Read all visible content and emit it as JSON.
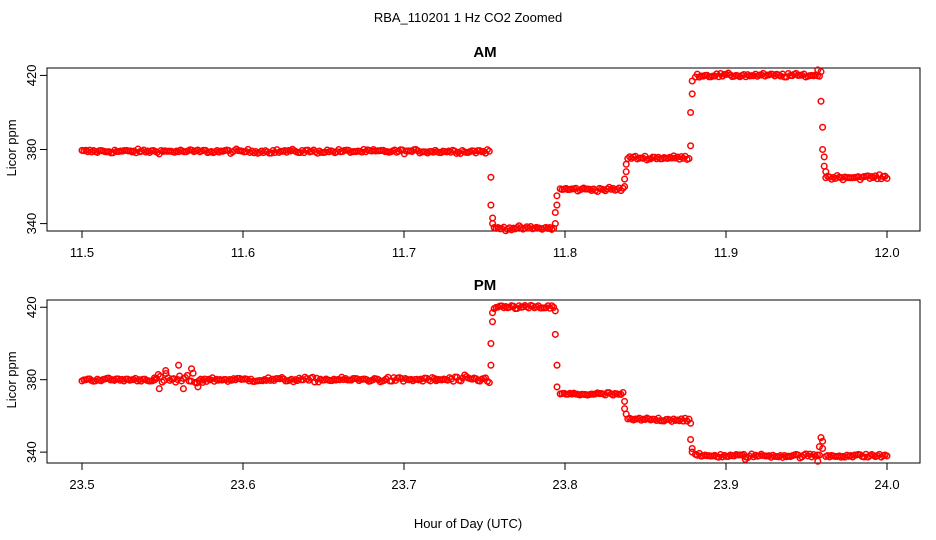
{
  "figure": {
    "title": "RBA_110201  1 Hz CO2 Zoomed",
    "xlabel": "Hour of Day (UTC)"
  },
  "chart_data": [
    {
      "type": "scatter",
      "title": "AM",
      "xlabel": "Hour of Day (UTC)",
      "ylabel": "Licor ppm",
      "xlim": [
        11.5,
        12.0
      ],
      "ylim": [
        336,
        424
      ],
      "xticks": [
        "11.5",
        "11.6",
        "11.7",
        "11.8",
        "11.9",
        "12.0"
      ],
      "xtick_values": [
        11.5,
        11.6,
        11.7,
        11.8,
        11.9,
        12.0
      ],
      "yticks": [
        "340",
        "380",
        "420"
      ],
      "ytick_values": [
        340,
        380,
        420
      ],
      "grid": false,
      "marker_color": "#ff0000",
      "segments": [
        {
          "x_start": 11.5,
          "x_end": 11.753,
          "y": 379,
          "noise": 1.0
        },
        {
          "x_start": 11.756,
          "x_end": 11.793,
          "y": 337.5,
          "noise": 1.0
        },
        {
          "x_start": 11.797,
          "x_end": 11.836,
          "y": 358.5,
          "noise": 1.0
        },
        {
          "x_start": 11.839,
          "x_end": 11.877,
          "y": 375.5,
          "noise": 1.0
        },
        {
          "x_start": 11.881,
          "x_end": 11.958,
          "y": 420,
          "noise": 1.0
        },
        {
          "x_start": 11.962,
          "x_end": 12.0,
          "y": 365,
          "noise": 1.0
        }
      ],
      "transition_points": [
        {
          "x": 11.754,
          "y": 365
        },
        {
          "x": 11.754,
          "y": 350
        },
        {
          "x": 11.755,
          "y": 343
        },
        {
          "x": 11.755,
          "y": 340
        },
        {
          "x": 11.794,
          "y": 340
        },
        {
          "x": 11.794,
          "y": 346
        },
        {
          "x": 11.795,
          "y": 350
        },
        {
          "x": 11.795,
          "y": 355
        },
        {
          "x": 11.837,
          "y": 360
        },
        {
          "x": 11.837,
          "y": 364
        },
        {
          "x": 11.838,
          "y": 368
        },
        {
          "x": 11.838,
          "y": 372
        },
        {
          "x": 11.878,
          "y": 382
        },
        {
          "x": 11.878,
          "y": 400
        },
        {
          "x": 11.879,
          "y": 410
        },
        {
          "x": 11.879,
          "y": 417
        },
        {
          "x": 11.957,
          "y": 423
        },
        {
          "x": 11.959,
          "y": 422
        },
        {
          "x": 11.959,
          "y": 406
        },
        {
          "x": 11.96,
          "y": 392
        },
        {
          "x": 11.96,
          "y": 380
        },
        {
          "x": 11.961,
          "y": 376
        },
        {
          "x": 11.961,
          "y": 371
        },
        {
          "x": 11.962,
          "y": 368
        }
      ]
    },
    {
      "type": "scatter",
      "title": "PM",
      "xlabel": "Hour of Day (UTC)",
      "ylabel": "Licor ppm",
      "xlim": [
        23.5,
        24.0
      ],
      "ylim": [
        334,
        424
      ],
      "xticks": [
        "23.5",
        "23.6",
        "23.7",
        "23.8",
        "23.9",
        "24.0"
      ],
      "xtick_values": [
        23.5,
        23.6,
        23.7,
        23.8,
        23.9,
        24.0
      ],
      "yticks": [
        "340",
        "380",
        "420"
      ],
      "ytick_values": [
        340,
        380,
        420
      ],
      "grid": false,
      "marker_color": "#ff0000",
      "segments": [
        {
          "x_start": 23.5,
          "x_end": 23.545,
          "y": 380,
          "noise": 1.0
        },
        {
          "x_start": 23.545,
          "x_end": 23.575,
          "y": 380,
          "noise": 3.0
        },
        {
          "x_start": 23.575,
          "x_end": 23.72,
          "y": 380,
          "noise": 1.2
        },
        {
          "x_start": 23.72,
          "x_end": 23.753,
          "y": 380,
          "noise": 2.0
        },
        {
          "x_start": 23.756,
          "x_end": 23.793,
          "y": 420,
          "noise": 1.0
        },
        {
          "x_start": 23.797,
          "x_end": 23.836,
          "y": 372,
          "noise": 1.0
        },
        {
          "x_start": 23.839,
          "x_end": 23.877,
          "y": 358,
          "noise": 1.0
        },
        {
          "x_start": 23.881,
          "x_end": 23.958,
          "y": 338,
          "noise": 1.0
        },
        {
          "x_start": 23.962,
          "x_end": 24.0,
          "y": 338,
          "noise": 1.0
        }
      ],
      "transition_points": [
        {
          "x": 23.548,
          "y": 375
        },
        {
          "x": 23.552,
          "y": 385
        },
        {
          "x": 23.56,
          "y": 388
        },
        {
          "x": 23.563,
          "y": 375
        },
        {
          "x": 23.568,
          "y": 386
        },
        {
          "x": 23.572,
          "y": 376
        },
        {
          "x": 23.754,
          "y": 388
        },
        {
          "x": 23.754,
          "y": 400
        },
        {
          "x": 23.755,
          "y": 412
        },
        {
          "x": 23.755,
          "y": 417
        },
        {
          "x": 23.794,
          "y": 418
        },
        {
          "x": 23.794,
          "y": 405
        },
        {
          "x": 23.795,
          "y": 388
        },
        {
          "x": 23.795,
          "y": 376
        },
        {
          "x": 23.837,
          "y": 368
        },
        {
          "x": 23.837,
          "y": 364
        },
        {
          "x": 23.838,
          "y": 361
        },
        {
          "x": 23.878,
          "y": 356
        },
        {
          "x": 23.878,
          "y": 347
        },
        {
          "x": 23.879,
          "y": 342
        },
        {
          "x": 23.879,
          "y": 340
        },
        {
          "x": 23.958,
          "y": 343
        },
        {
          "x": 23.959,
          "y": 348
        },
        {
          "x": 23.96,
          "y": 346
        },
        {
          "x": 23.96,
          "y": 342
        },
        {
          "x": 23.957,
          "y": 335
        },
        {
          "x": 23.912,
          "y": 336
        }
      ]
    }
  ]
}
